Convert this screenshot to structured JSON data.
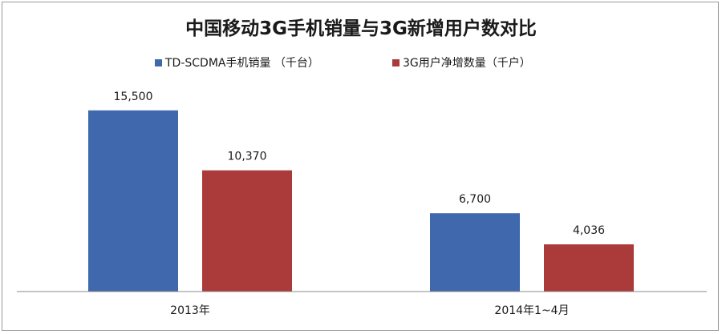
{
  "chart_data": {
    "type": "bar",
    "title": "中国移动3G手机销量与3G新增用户数对比",
    "categories": [
      "2013年",
      "2014年1~4月"
    ],
    "series": [
      {
        "name": "TD-SCDMA手机销量 （千台）",
        "values": [
          15500,
          6700
        ],
        "labels": [
          "15,500",
          "6,700"
        ],
        "color": "#4068ad"
      },
      {
        "name": "3G用户净增数量（千户）",
        "values": [
          10370,
          4036
        ],
        "labels": [
          "10,370",
          "4,036"
        ],
        "color": "#ab3a3a"
      }
    ],
    "ylim": [
      0,
      18500
    ],
    "grid": false,
    "legend_position": "top"
  }
}
